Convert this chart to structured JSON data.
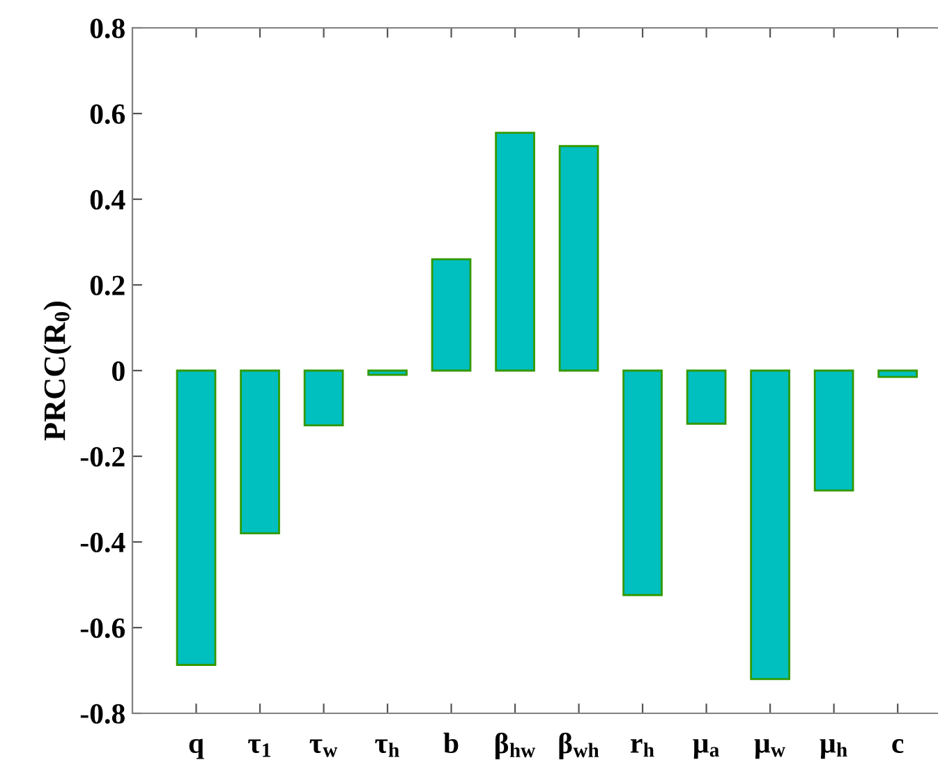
{
  "chart_data": {
    "type": "bar",
    "ylabel": "PRCC(R$_{0}$)",
    "categories": [
      "q",
      "τ$_{1}$",
      "τ$_{w}$",
      "τ$_{h}$",
      "b",
      "β$_{hw}$",
      "β$_{wh}$",
      "r$_{h}$",
      "μ$_{a}$",
      "μ$_{w}$",
      "μ$_{h}$",
      "c"
    ],
    "values": [
      -0.687,
      -0.38,
      -0.128,
      -0.01,
      0.26,
      0.555,
      0.524,
      -0.524,
      -0.124,
      -0.72,
      -0.28,
      -0.015
    ],
    "color": "#00bfbf",
    "ylim": [
      -0.8,
      0.8
    ],
    "yticks": [
      -0.8,
      -0.6,
      -0.4,
      -0.2,
      0,
      0.2,
      0.4,
      0.6,
      0.8
    ],
    "grid": false
  }
}
